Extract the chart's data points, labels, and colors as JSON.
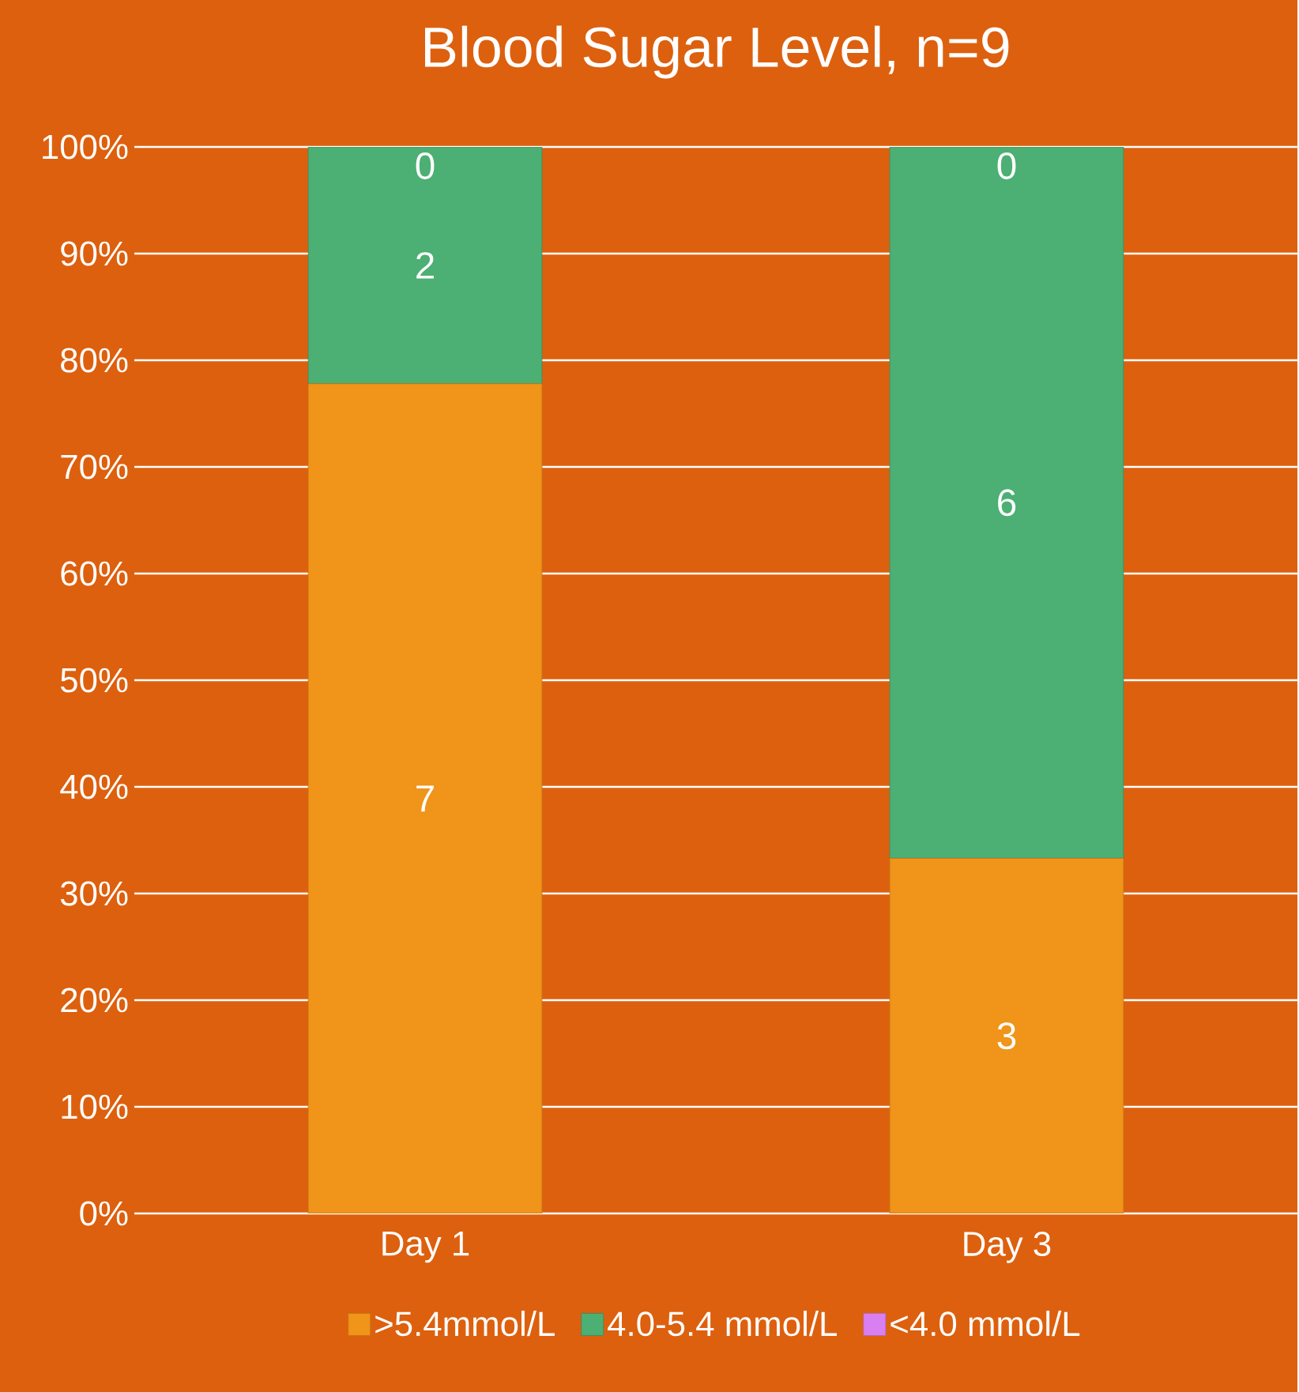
{
  "chart_data": {
    "type": "bar",
    "title": "Blood Sugar Level, n=9",
    "categories": [
      "Day 1",
      "Day 3"
    ],
    "stacked": true,
    "ylim": [
      0,
      100
    ],
    "yticks": [
      {
        "value": 0,
        "label": "0%"
      },
      {
        "value": 10,
        "label": "10%"
      },
      {
        "value": 20,
        "label": "20%"
      },
      {
        "value": 30,
        "label": "30%"
      },
      {
        "value": 40,
        "label": "40%"
      },
      {
        "value": 50,
        "label": "50%"
      },
      {
        "value": 60,
        "label": "60%"
      },
      {
        "value": 70,
        "label": "70%"
      },
      {
        "value": 80,
        "label": "80%"
      },
      {
        "value": 90,
        "label": "90%"
      },
      {
        "value": 100,
        "label": "100%"
      }
    ],
    "grid": "y",
    "legend": "bottom",
    "series": [
      {
        "name": ">5.4mmol/L",
        "color": "#f0941a",
        "values": [
          77.8,
          33.3
        ]
      },
      {
        "name": "4.0-5.4 mmol/L",
        "color": "#4caf73",
        "values": [
          22.2,
          66.7
        ]
      },
      {
        "name": "<4.0 mmol/L",
        "color": "#d97ff2",
        "values": [
          0,
          0
        ]
      }
    ],
    "annotations": [
      "7",
      "3",
      "2",
      "6",
      "0",
      "0"
    ]
  }
}
